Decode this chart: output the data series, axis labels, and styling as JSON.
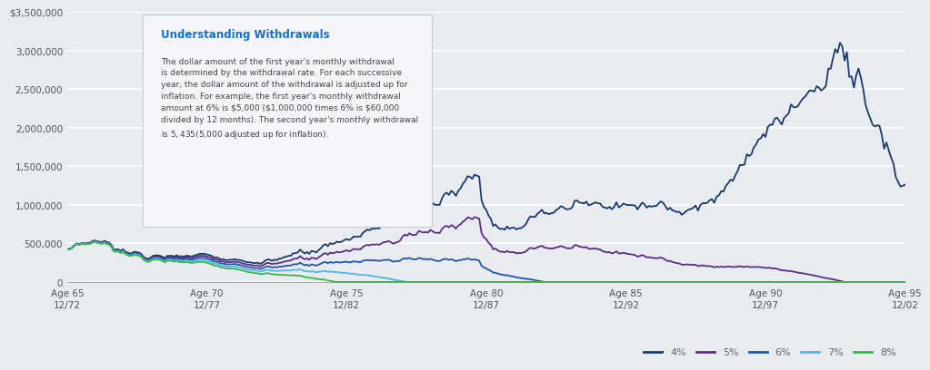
{
  "title": "Understanding Withdrawals",
  "annotation": "The dollar amount of the first year’s monthly withdrawal\nis determined by the withdrawal rate. For each successive\nyear, the dollar amount of the withdrawal is adjusted up for\ninflation. For example, the first year’s monthly withdrawal\namount at 6% is $5,000 ($1,000,000 times 6% is $60,000\ndivided by 12 months). The second year’s monthly withdrawal\nis $5,435 ($5,000 adjusted up for inflation).",
  "x_labels": [
    "Age 65\n12/72",
    "Age 70\n12/77",
    "Age 75\n12/82",
    "Age 80\n12/87",
    "Age 85\n12/92",
    "Age 90\n12/97",
    "Age 95\n12/02"
  ],
  "x_ticks": [
    0,
    60,
    120,
    180,
    240,
    300,
    360
  ],
  "ylim": [
    0,
    3500000
  ],
  "y_ticks": [
    0,
    500000,
    1000000,
    1500000,
    2000000,
    2500000,
    3000000,
    3500000
  ],
  "y_labels": [
    "0",
    "500,000",
    "1,000,000",
    "1,500,000",
    "2,000,000",
    "2,500,000",
    "3,000,000",
    "$3,500,000"
  ],
  "series_colors": [
    "#1b3a6b",
    "#5c2d82",
    "#2255aa",
    "#4ab8e8",
    "#3db54a"
  ],
  "series_labels": [
    "4%",
    "5%",
    "6%",
    "7%",
    "8%"
  ],
  "bg_color": "#e8ecf0",
  "plot_bg_color": "#e8ecf0",
  "box_bg_color": "#f4f6f9",
  "initial_value": 1000000
}
